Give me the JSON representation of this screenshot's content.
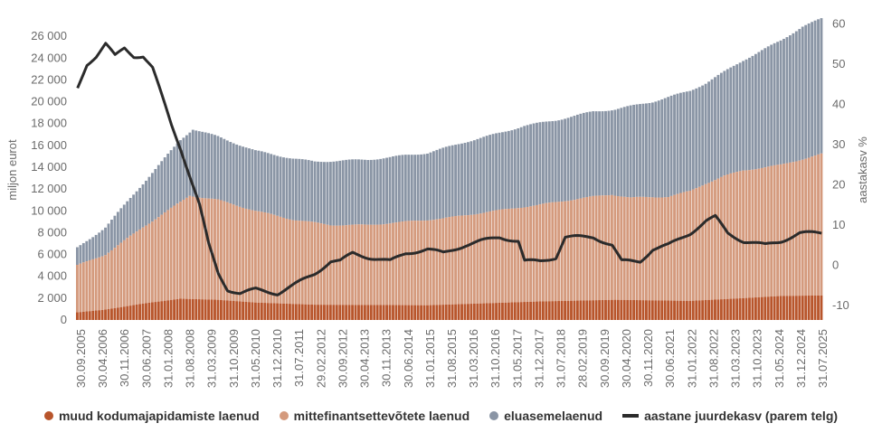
{
  "chart_data": {
    "type": "bar",
    "stacked": true,
    "yaxis_left": {
      "label": "miljon eurot",
      "ticks": [
        "0",
        "2 000",
        "4 000",
        "6 000",
        "8 000",
        "10 000",
        "12 000",
        "14 000",
        "16 000",
        "18 000",
        "20 000",
        "22 000",
        "24 000",
        "26 000"
      ],
      "range": [
        0,
        27500
      ]
    },
    "yaxis_right": {
      "label": "aastakasv %",
      "ticks": [
        "-10",
        "0",
        "10",
        "20",
        "30",
        "40",
        "50",
        "60"
      ],
      "range": [
        -13.6,
        61
      ]
    },
    "x_tick_labels": [
      "30.09.2005",
      "30.04.2006",
      "30.11.2006",
      "30.06.2007",
      "31.01.2008",
      "31.08.2008",
      "31.03.2009",
      "31.10.2009",
      "31.05.2010",
      "31.12.2010",
      "31.07.2011",
      "29.02.2012",
      "30.09.2012",
      "30.04.2013",
      "30.11.2013",
      "30.06.2014",
      "31.01.2015",
      "31.08.2015",
      "31.03.2016",
      "31.10.2016",
      "31.05.2017",
      "31.12.2017",
      "31.07.2018",
      "28.02.2019",
      "30.09.2019",
      "30.04.2020",
      "30.11.2020",
      "30.06.2021",
      "31.01.2022",
      "31.08.2022",
      "31.03.2023",
      "31.10.2023",
      "31.05.2024",
      "31.12.2024",
      "31.07.2025"
    ],
    "series_points": {
      "muud": [
        [
          "2005-09",
          700
        ],
        [
          "2006-06",
          950
        ],
        [
          "2007-06",
          1500
        ],
        [
          "2008-06",
          1950
        ],
        [
          "2009-06",
          1850
        ],
        [
          "2010-06",
          1600
        ],
        [
          "2012-01",
          1400
        ],
        [
          "2015-01",
          1350
        ],
        [
          "2018-01",
          1700
        ],
        [
          "2020-01",
          1850
        ],
        [
          "2022-01",
          1750
        ],
        [
          "2023-06",
          2000
        ],
        [
          "2024-06",
          2200
        ],
        [
          "2025-07",
          2250
        ]
      ],
      "mittefin": [
        [
          "2005-09",
          5000
        ],
        [
          "2006-06",
          6000
        ],
        [
          "2007-06",
          8500
        ],
        [
          "2008-06",
          10800
        ],
        [
          "2008-09",
          11400
        ],
        [
          "2009-06",
          11000
        ],
        [
          "2010-06",
          10000
        ],
        [
          "2011-06",
          9200
        ],
        [
          "2012-06",
          8700
        ],
        [
          "2013-06",
          8700
        ],
        [
          "2014-06",
          9000
        ],
        [
          "2015-06",
          9300
        ],
        [
          "2016-06",
          9800
        ],
        [
          "2017-06",
          10300
        ],
        [
          "2017-12",
          10500
        ],
        [
          "2018-06",
          10800
        ],
        [
          "2019-06",
          11300
        ],
        [
          "2019-12",
          11500
        ],
        [
          "2020-06",
          11200
        ],
        [
          "2021-06",
          11300
        ],
        [
          "2022-01",
          11800
        ],
        [
          "2022-06",
          12500
        ],
        [
          "2022-12",
          13200
        ],
        [
          "2023-06",
          13700
        ],
        [
          "2024-06",
          14200
        ],
        [
          "2025-07",
          15200
        ]
      ],
      "eluase": [
        [
          "2005-09",
          6600
        ],
        [
          "2006-06",
          8500
        ],
        [
          "2007-06",
          12500
        ],
        [
          "2008-06",
          16500
        ],
        [
          "2008-10",
          17500
        ],
        [
          "2009-06",
          16800
        ],
        [
          "2010-06",
          15500
        ],
        [
          "2011-06",
          14800
        ],
        [
          "2012-01",
          14500
        ],
        [
          "2012-09",
          14600
        ],
        [
          "2013-06",
          14700
        ],
        [
          "2014-01",
          14900
        ],
        [
          "2014-06",
          15100
        ],
        [
          "2015-01",
          15300
        ],
        [
          "2016-01",
          16300
        ],
        [
          "2017-01",
          17200
        ],
        [
          "2017-08",
          17800
        ],
        [
          "2018-06",
          18300
        ],
        [
          "2019-06",
          19100
        ],
        [
          "2020-01",
          19300
        ],
        [
          "2021-01",
          20000
        ],
        [
          "2022-01",
          21000
        ],
        [
          "2022-06",
          21700
        ],
        [
          "2023-06",
          23800
        ],
        [
          "2024-06",
          25600
        ],
        [
          "2025-01",
          26900
        ],
        [
          "2025-07",
          27600
        ]
      ],
      "aastakasv": [
        [
          "2005-09",
          44
        ],
        [
          "2005-12",
          50
        ],
        [
          "2006-03",
          52
        ],
        [
          "2006-06",
          55
        ],
        [
          "2006-09",
          52
        ],
        [
          "2006-12",
          54
        ],
        [
          "2007-03",
          52
        ],
        [
          "2007-06",
          52
        ],
        [
          "2007-09",
          49
        ],
        [
          "2007-12",
          42
        ],
        [
          "2008-03",
          35
        ],
        [
          "2008-06",
          29
        ],
        [
          "2008-09",
          22
        ],
        [
          "2008-12",
          15
        ],
        [
          "2009-03",
          5
        ],
        [
          "2009-06",
          -2
        ],
        [
          "2009-09",
          -6
        ],
        [
          "2010-01",
          -7
        ],
        [
          "2010-06",
          -6
        ],
        [
          "2011-01",
          -7
        ],
        [
          "2011-06",
          -5
        ],
        [
          "2012-01",
          -2
        ],
        [
          "2012-06",
          1
        ],
        [
          "2012-09",
          1
        ],
        [
          "2013-01",
          3
        ],
        [
          "2013-06",
          2
        ],
        [
          "2014-01",
          1
        ],
        [
          "2014-06",
          3
        ],
        [
          "2015-01",
          4
        ],
        [
          "2015-06",
          3
        ],
        [
          "2016-01",
          5
        ],
        [
          "2016-06",
          6
        ],
        [
          "2016-12",
          7
        ],
        [
          "2017-06",
          6
        ],
        [
          "2017-08",
          1
        ],
        [
          "2018-01",
          1
        ],
        [
          "2018-06",
          2
        ],
        [
          "2018-09",
          7
        ],
        [
          "2019-06",
          7
        ],
        [
          "2019-12",
          5
        ],
        [
          "2020-03",
          1
        ],
        [
          "2020-09",
          1
        ],
        [
          "2021-01",
          4
        ],
        [
          "2021-06",
          5
        ],
        [
          "2022-01",
          8
        ],
        [
          "2022-06",
          11
        ],
        [
          "2022-09",
          12
        ],
        [
          "2023-01",
          8
        ],
        [
          "2023-06",
          6
        ],
        [
          "2024-01",
          5
        ],
        [
          "2024-06",
          6
        ],
        [
          "2024-12",
          8
        ],
        [
          "2025-07",
          8
        ]
      ]
    },
    "x_start": "2005-09",
    "x_end": "2025-07",
    "colors": {
      "muud": "#b8552b",
      "mittefin": "#d49a7d",
      "eluase": "#8a95a5",
      "line": "#2b2b2b"
    }
  },
  "legend": {
    "muud": "muud kodumajapidamiste laenud",
    "mittefin": "mittefinantsettevõtete laenud",
    "eluase": "eluasemelaenud",
    "line": "aastane juurdekasv (parem telg)"
  }
}
